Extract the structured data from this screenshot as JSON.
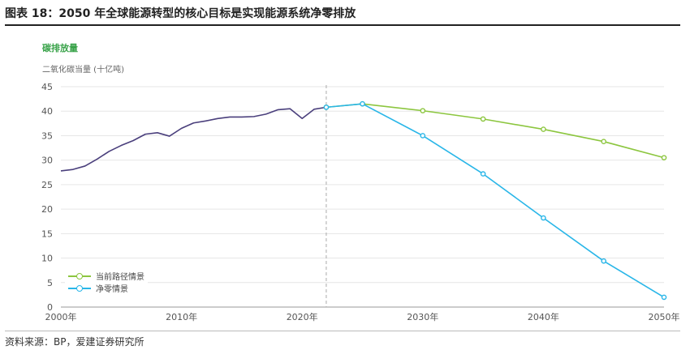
{
  "header": {
    "figure_title": "图表 18：2050 年全球能源转型的核心目标是实现能源系统净零排放",
    "subtitle": "碳排放量",
    "source": "资料来源：BP，爱建证券研究所"
  },
  "colors": {
    "historical": "#4a3f7c",
    "current_path": "#8cc63f",
    "net_zero": "#29b6e8",
    "grid": "#e6e6e6",
    "divider": "#aaaaaa",
    "subtitle": "#3aa34a"
  },
  "chart_data": {
    "type": "line",
    "ylabel": "二氧化碳当量 (十亿吨)",
    "xlabel": "",
    "xlim": [
      2000,
      2050
    ],
    "ylim": [
      0,
      45
    ],
    "x_ticks": [
      "2000年",
      "2010年",
      "2020年",
      "2030年",
      "2040年",
      "2050年"
    ],
    "x_tick_values": [
      2000,
      2010,
      2020,
      2030,
      2040,
      2050
    ],
    "y_ticks": [
      0,
      5,
      10,
      15,
      20,
      25,
      30,
      35,
      40,
      45
    ],
    "grid": true,
    "legend_position": "bottom-left",
    "divider_x": 2022,
    "series": [
      {
        "name": "",
        "key": "historical",
        "markers": false,
        "x": [
          2000,
          2001,
          2002,
          2003,
          2004,
          2005,
          2006,
          2007,
          2008,
          2009,
          2010,
          2011,
          2012,
          2013,
          2014,
          2015,
          2016,
          2017,
          2018,
          2019,
          2020,
          2021,
          2022
        ],
        "y": [
          27.8,
          28.1,
          28.8,
          30.2,
          31.8,
          33.0,
          34.0,
          35.3,
          35.6,
          34.9,
          36.5,
          37.6,
          38.0,
          38.5,
          38.8,
          38.8,
          38.9,
          39.4,
          40.3,
          40.5,
          38.5,
          40.4,
          40.8
        ]
      },
      {
        "name": "当前路径情景",
        "key": "current_path",
        "markers": true,
        "x": [
          2022,
          2025,
          2030,
          2035,
          2040,
          2045,
          2050
        ],
        "y": [
          40.8,
          41.5,
          40.1,
          38.4,
          36.3,
          33.8,
          30.5
        ]
      },
      {
        "name": "净零情景",
        "key": "net_zero",
        "markers": true,
        "x": [
          2022,
          2025,
          2030,
          2035,
          2040,
          2045,
          2050
        ],
        "y": [
          40.8,
          41.5,
          35.0,
          27.2,
          18.2,
          9.4,
          2.0
        ]
      }
    ]
  }
}
